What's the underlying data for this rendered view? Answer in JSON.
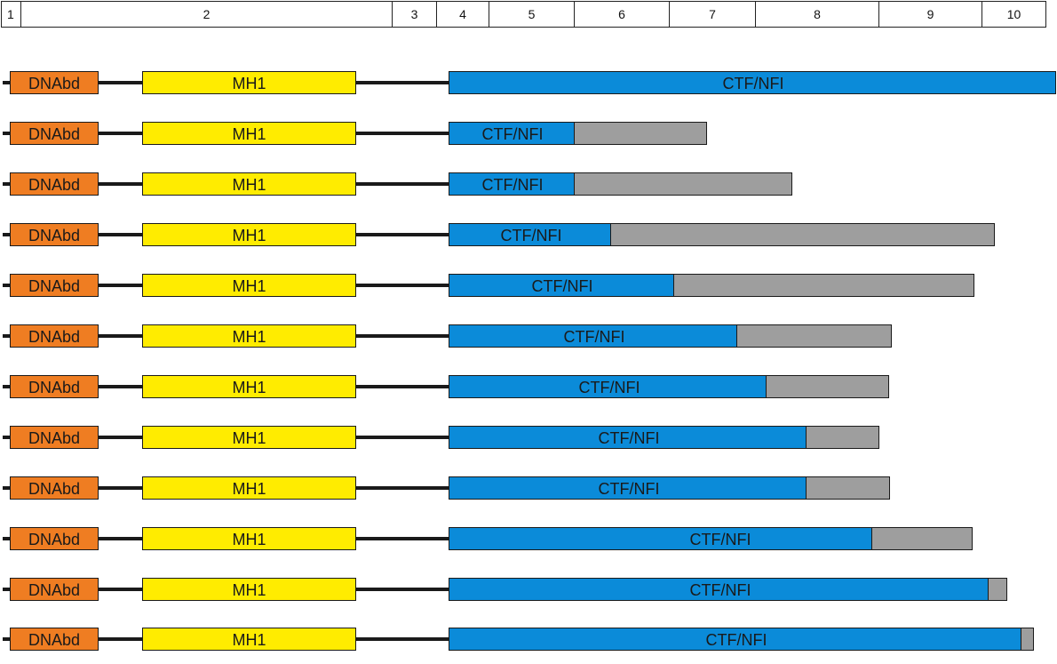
{
  "exons": [
    "1",
    "2",
    "3",
    "4",
    "5",
    "6",
    "7",
    "8",
    "9",
    "10"
  ],
  "domains": {
    "dna": "DNAbd",
    "mh1": "MH1",
    "ctf": "CTF/NFI"
  },
  "colors": {
    "dna": "#ef7d22",
    "mh1": "#ffec00",
    "ctf": "#0b8bd9",
    "truncated": "#9e9e9e",
    "line": "#1a1a1a"
  },
  "isoforms": [
    {
      "ctf_extent": "full",
      "grey_extent": "none"
    },
    {
      "ctf_extent": "short",
      "grey_extent": "short"
    },
    {
      "ctf_extent": "short",
      "grey_extent": "medium"
    },
    {
      "ctf_extent": "short",
      "grey_extent": "long"
    },
    {
      "ctf_extent": "medium",
      "grey_extent": "long"
    },
    {
      "ctf_extent": "medium",
      "grey_extent": "medium"
    },
    {
      "ctf_extent": "medium",
      "grey_extent": "medium"
    },
    {
      "ctf_extent": "long",
      "grey_extent": "short"
    },
    {
      "ctf_extent": "long",
      "grey_extent": "short"
    },
    {
      "ctf_extent": "long",
      "grey_extent": "medium"
    },
    {
      "ctf_extent": "long",
      "grey_extent": "tiny"
    },
    {
      "ctf_extent": "long",
      "grey_extent": "tiny"
    }
  ]
}
